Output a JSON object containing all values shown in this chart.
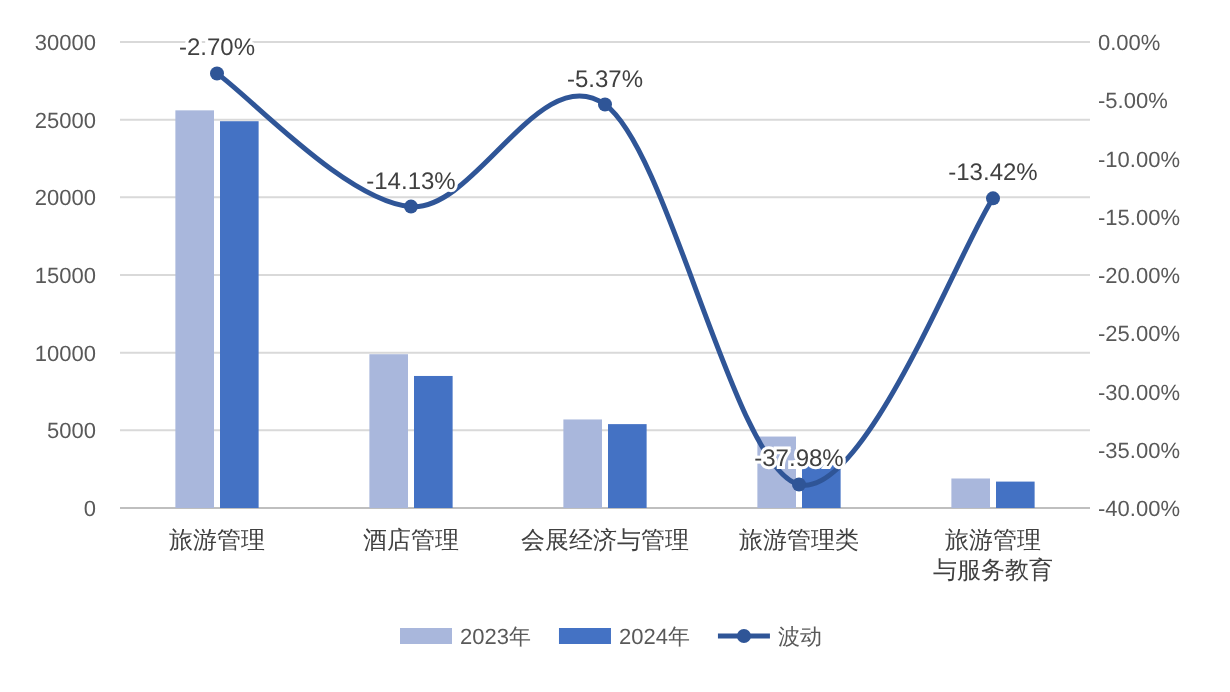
{
  "chart_data": {
    "type": "bar",
    "categories": [
      "旅游管理",
      "酒店管理",
      "会展经济与管理",
      "旅游管理类",
      "旅游管理与服务教育"
    ],
    "series": [
      {
        "name": "2023年",
        "color": "#a9b7dc",
        "values": [
          25600,
          9900,
          5700,
          4600,
          1900
        ]
      },
      {
        "name": "2024年",
        "color": "#4472c4",
        "values": [
          24900,
          8500,
          5400,
          2800,
          1700
        ]
      },
      {
        "name": "波动",
        "type": "line",
        "axis": "y2",
        "color": "#2f5597",
        "marker": "circle",
        "values": [
          -2.7,
          -14.13,
          -5.37,
          -37.98,
          -13.42
        ],
        "value_labels": [
          "-2.70%",
          "-14.13%",
          "-5.37%",
          "-37.98%",
          "-13.42%"
        ]
      }
    ],
    "ylim": [
      0,
      30000
    ],
    "yticks": [
      0,
      5000,
      10000,
      15000,
      20000,
      25000,
      30000
    ],
    "y2lim": [
      -40,
      0
    ],
    "y2ticks": [
      {
        "value": 0,
        "label": "0.00%"
      },
      {
        "value": -5,
        "label": "-5.00%"
      },
      {
        "value": -10,
        "label": "-10.00%"
      },
      {
        "value": -15,
        "label": "-15.00%"
      },
      {
        "value": -20,
        "label": "-20.00%"
      },
      {
        "value": -25,
        "label": "-25.00%"
      },
      {
        "value": -30,
        "label": "-30.00%"
      },
      {
        "value": -35,
        "label": "-35.00%"
      },
      {
        "value": -40,
        "label": "-40.00%"
      }
    ],
    "grid": "y",
    "legend": "bottom"
  }
}
